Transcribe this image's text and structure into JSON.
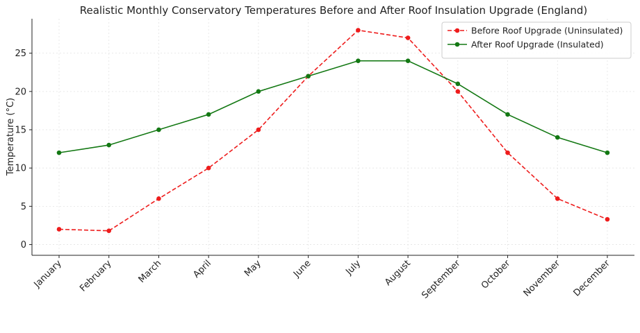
{
  "chart_data": {
    "type": "line",
    "title": "Realistic Monthly Conservatory Temperatures Before and After Roof Insulation Upgrade (England)",
    "xlabel": "",
    "ylabel": "Temperature (°C)",
    "categories": [
      "January",
      "February",
      "March",
      "April",
      "May",
      "June",
      "July",
      "August",
      "September",
      "October",
      "November",
      "December"
    ],
    "ylim": [
      -1.4,
      29.5
    ],
    "yticks": [
      0,
      5,
      10,
      15,
      20,
      25
    ],
    "grid": true,
    "legend_position": "top-right",
    "series": [
      {
        "name": "Before Roof Upgrade (Uninsulated)",
        "color": "#ee1c1c",
        "style": "dashed",
        "values": [
          2.0,
          1.8,
          6.0,
          10.0,
          15.0,
          22.0,
          28.0,
          27.0,
          20.0,
          12.0,
          6.0,
          3.3
        ]
      },
      {
        "name": "After Roof Upgrade (Insulated)",
        "color": "#137813",
        "style": "solid",
        "values": [
          12.0,
          13.0,
          15.0,
          17.0,
          20.0,
          22.0,
          24.0,
          24.0,
          21.0,
          17.0,
          14.0,
          12.0
        ]
      }
    ]
  }
}
